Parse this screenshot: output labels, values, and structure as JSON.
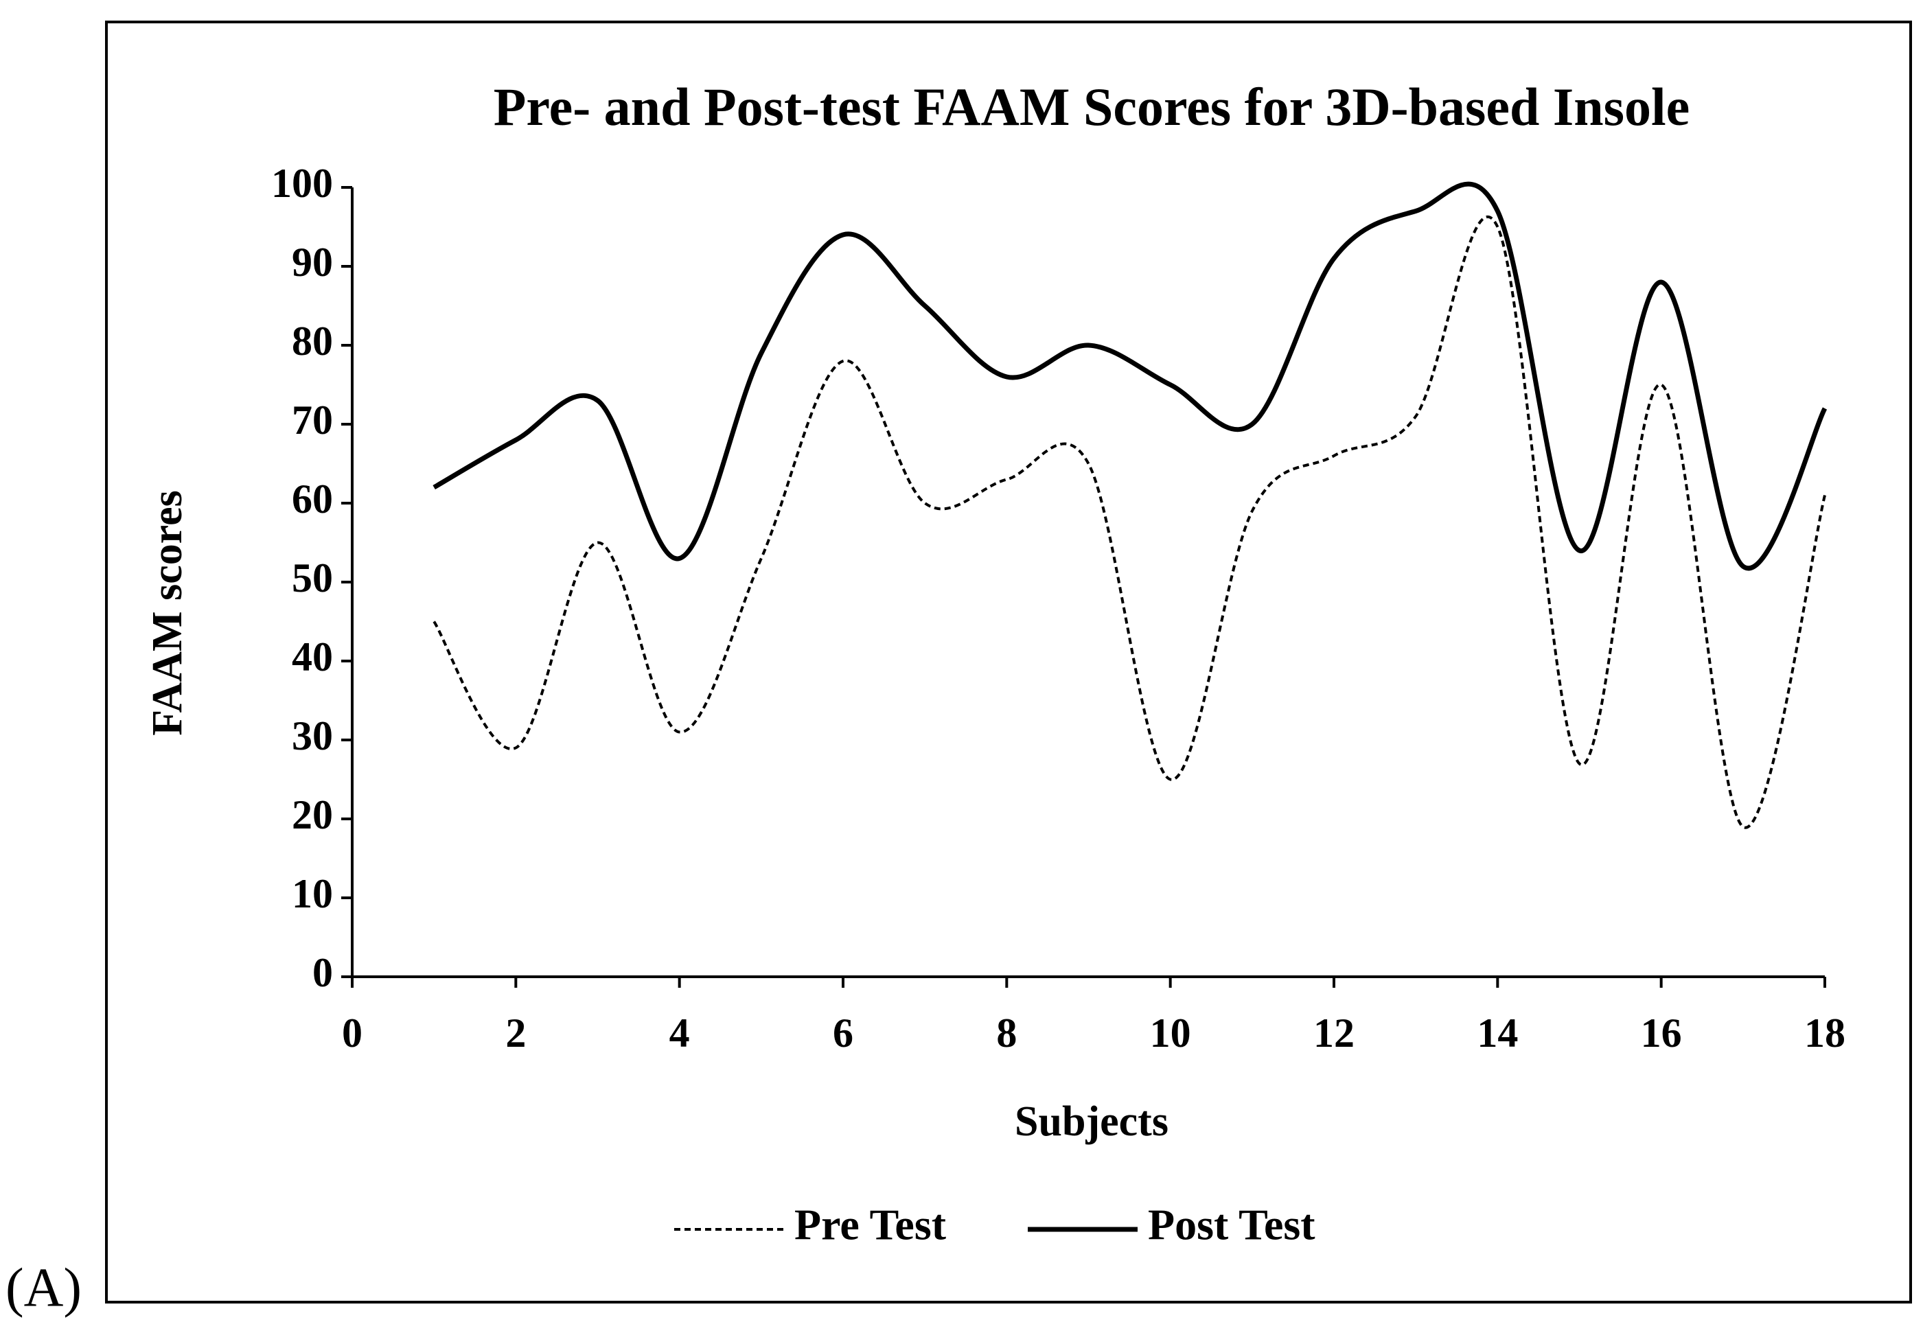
{
  "panel_label": "(A)",
  "chart_data": {
    "type": "line",
    "title": "Pre- and Post-test FAAM Scores for 3D-based Insole",
    "xlabel": "Subjects",
    "ylabel": "FAAM scores",
    "x": [
      1,
      2,
      3,
      4,
      5,
      6,
      7,
      8,
      9,
      10,
      11,
      12,
      13,
      14,
      15,
      16,
      17,
      18
    ],
    "series": [
      {
        "name": "Pre Test",
        "color": "#000000",
        "style": "dashed",
        "values": [
          45,
          29,
          55,
          31,
          53,
          78,
          60,
          63,
          65,
          25,
          59,
          66,
          71,
          95,
          27,
          75,
          19,
          61
        ]
      },
      {
        "name": "Post Test",
        "color": "#000000",
        "style": "solid",
        "values": [
          62,
          68,
          73,
          53,
          79,
          94,
          85,
          76,
          80,
          75,
          70,
          91,
          97,
          97,
          54,
          88,
          52,
          72
        ]
      }
    ],
    "xlim": [
      0,
      18
    ],
    "xticks": [
      0,
      2,
      4,
      6,
      8,
      10,
      12,
      14,
      16,
      18
    ],
    "ylim": [
      0,
      100
    ],
    "yticks": [
      0,
      10,
      20,
      30,
      40,
      50,
      60,
      70,
      80,
      90,
      100
    ],
    "smooth": true,
    "grid": false,
    "legend": "bottom"
  }
}
